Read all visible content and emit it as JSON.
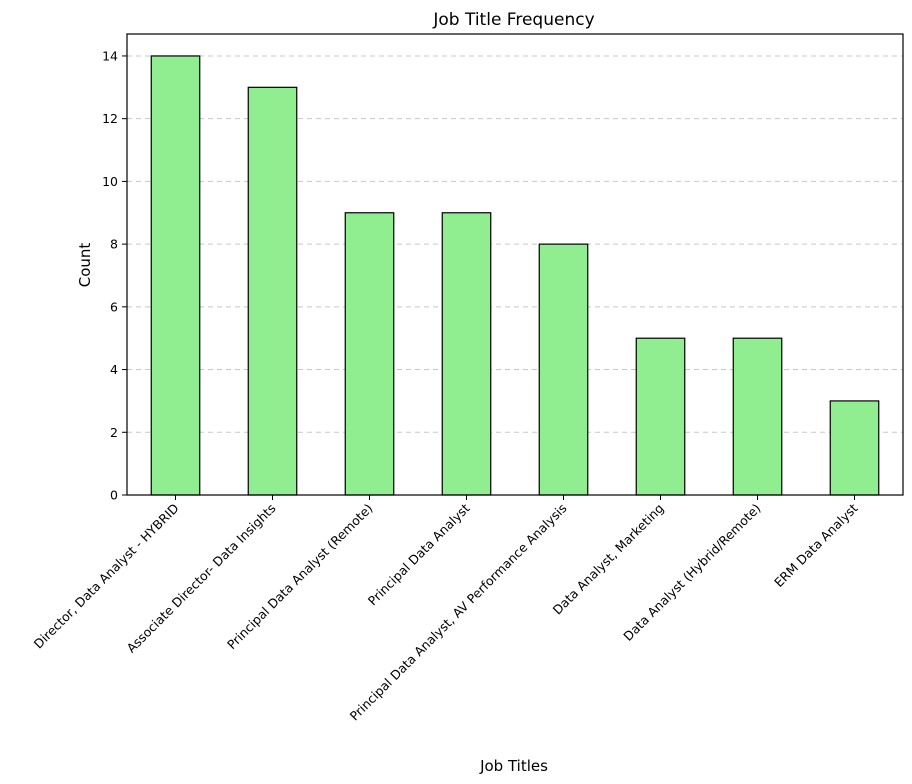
{
  "chart_data": {
    "type": "bar",
    "title": "Job Title Frequency",
    "xlabel": "Job Titles",
    "ylabel": "Count",
    "categories": [
      "Director, Data Analyst - HYBRID",
      "Associate Director- Data Insights",
      "Principal Data Analyst (Remote)",
      "Principal Data Analyst",
      "Principal Data Analyst, AV Performance Analysis",
      "Data Analyst, Marketing",
      "Data Analyst (Hybrid/Remote)",
      "ERM Data Analyst"
    ],
    "values": [
      14,
      13,
      9,
      9,
      8,
      5,
      5,
      3
    ],
    "ylim": [
      0,
      14.7
    ],
    "yticks": [
      0,
      2,
      4,
      6,
      8,
      10,
      12,
      14
    ],
    "grid": "y-dashed",
    "bar_color": "#90ee90",
    "edge_color": "#000000"
  }
}
